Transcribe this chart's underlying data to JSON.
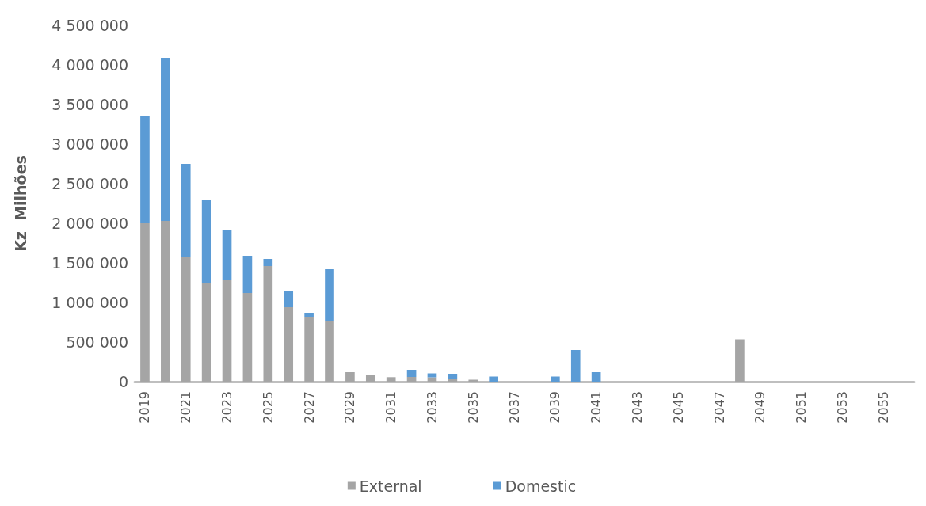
{
  "chart_data": {
    "type": "bar",
    "stacked": true,
    "ylabel": "Kz  Milhões",
    "categories": [
      "2019",
      null,
      "2021",
      null,
      "2023",
      null,
      "2025",
      null,
      "2027",
      null,
      "2029",
      null,
      "2031",
      null,
      "2033",
      null,
      "2035",
      null,
      "2037",
      null,
      "2039",
      null,
      "2041",
      null,
      "2043",
      null,
      "2045",
      null,
      "2047",
      null,
      "2049",
      null,
      "2051",
      null,
      "2053",
      null,
      "2055",
      null
    ],
    "series": [
      {
        "name": "External",
        "color": "#a5a5a5",
        "values": [
          2000000,
          2030000,
          1570000,
          1250000,
          1280000,
          1120000,
          1460000,
          940000,
          820000,
          770000,
          120000,
          85000,
          57000,
          60000,
          55000,
          35000,
          25000,
          0,
          0,
          0,
          0,
          0,
          0,
          0,
          0,
          0,
          0,
          0,
          0,
          535000,
          0,
          0,
          0,
          0,
          0,
          0,
          0,
          0
        ]
      },
      {
        "name": "Domestic",
        "color": "#5b9bd5",
        "values": [
          1350000,
          2060000,
          1180000,
          1050000,
          630000,
          470000,
          90000,
          200000,
          50000,
          650000,
          0,
          0,
          0,
          90000,
          50000,
          65000,
          0,
          65000,
          0,
          0,
          65000,
          400000,
          120000,
          0,
          0,
          0,
          0,
          0,
          0,
          0,
          0,
          0,
          0,
          0,
          0,
          0,
          0,
          0
        ]
      }
    ],
    "ylim": [
      0,
      4500000
    ],
    "yticks": [
      0,
      {
        "value": 500000,
        "label": "500 000"
      },
      {
        "value": 1000000,
        "label": "1 000 000"
      },
      {
        "value": 1500000,
        "label": "1 500 000"
      },
      {
        "value": 2000000,
        "label": "2 000 000"
      },
      {
        "value": 2500000,
        "label": "2 500 000"
      },
      {
        "value": 3000000,
        "label": "3 000 000"
      },
      {
        "value": 3500000,
        "label": "3 500 000"
      },
      {
        "value": 4000000,
        "label": "4 000 000"
      },
      {
        "value": 4500000,
        "label": "4 500 000"
      }
    ],
    "grid": false,
    "legend": "bottom"
  }
}
